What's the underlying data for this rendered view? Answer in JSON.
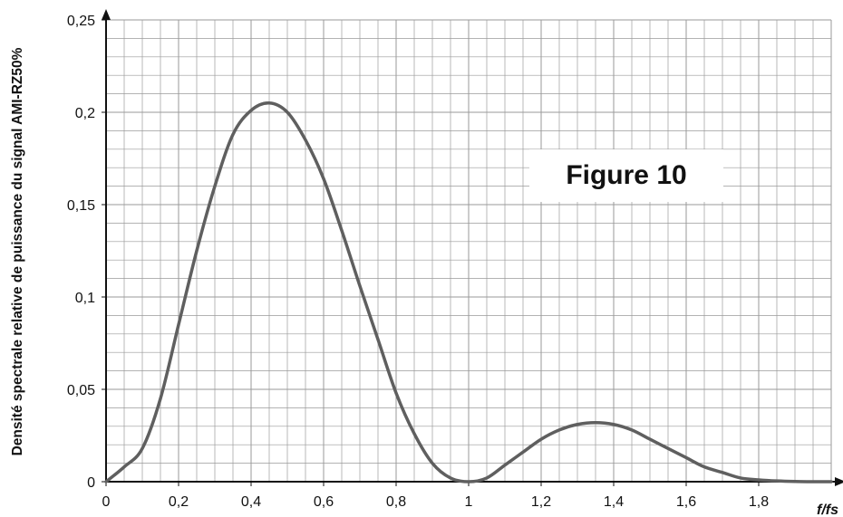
{
  "chart_data": {
    "type": "line",
    "title": "",
    "annotation": "Figure 10",
    "xlabel": "f/fs",
    "ylabel": "Densité spectrale relative de puissance du signal AMI-RZ50%",
    "xlim": [
      0,
      2
    ],
    "ylim": [
      0,
      0.25
    ],
    "grid": true,
    "x_ticks": [
      "0",
      "0,2",
      "0,4",
      "0,6",
      "0,8",
      "1",
      "1,2",
      "1,4",
      "1,6",
      "1,8"
    ],
    "y_ticks": [
      "0",
      "0,05",
      "0,1",
      "0,15",
      "0,2",
      "0,25"
    ],
    "series": [
      {
        "color": "#5f5f5f",
        "x": [
          0,
          0.05,
          0.1,
          0.15,
          0.2,
          0.25,
          0.3,
          0.35,
          0.4,
          0.45,
          0.5,
          0.55,
          0.6,
          0.65,
          0.7,
          0.75,
          0.8,
          0.85,
          0.9,
          0.95,
          1.0,
          1.05,
          1.1,
          1.15,
          1.2,
          1.25,
          1.3,
          1.35,
          1.4,
          1.45,
          1.5,
          1.55,
          1.6,
          1.65,
          1.7,
          1.75,
          1.8,
          1.85,
          1.9,
          1.95,
          2.0
        ],
        "y": [
          0,
          0.008,
          0.018,
          0.045,
          0.085,
          0.125,
          0.16,
          0.188,
          0.201,
          0.205,
          0.2,
          0.185,
          0.164,
          0.136,
          0.106,
          0.077,
          0.048,
          0.026,
          0.01,
          0.002,
          0,
          0.002,
          0.009,
          0.016,
          0.023,
          0.028,
          0.031,
          0.032,
          0.031,
          0.028,
          0.023,
          0.018,
          0.013,
          0.008,
          0.005,
          0.002,
          0.001,
          0.0004,
          0.0001,
          0,
          0
        ]
      }
    ]
  }
}
